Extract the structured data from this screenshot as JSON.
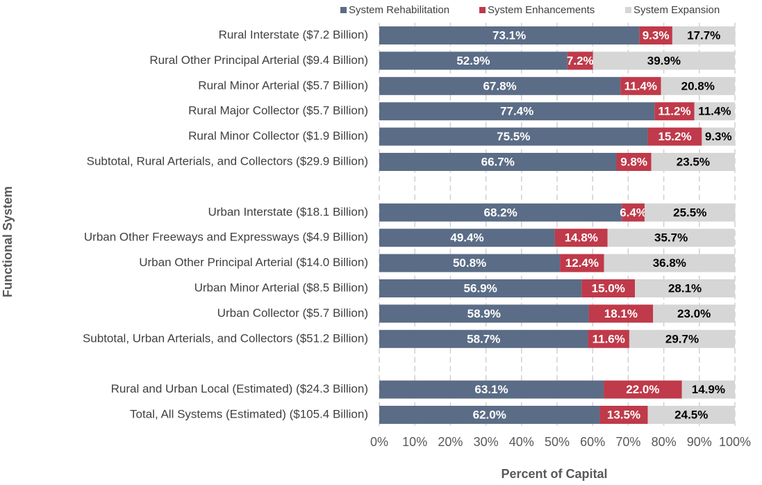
{
  "chart_data": {
    "type": "stacked-bar-horizontal",
    "x_label": "Percent of Capital",
    "y_label": "Functional System",
    "categories": [
      "Rural Interstate ($7.2 Billion)",
      "Rural Other Principal Arterial ($9.4 Billion)",
      "Rural Minor Arterial ($5.7 Billion)",
      "Rural Major Collector ($5.7 Billion)",
      "Rural Minor Collector ($1.9 Billion)",
      "Subtotal, Rural Arterials, and Collectors ($29.9 Billion)",
      null,
      "Urban Interstate ($18.1 Billion)",
      "Urban Other Freeways and Expressways ($4.9 Billion)",
      "Urban Other Principal Arterial ($14.0 Billion)",
      "Urban Minor Arterial ($8.5 Billion)",
      "Urban Collector ($5.7 Billion)",
      "Subtotal, Urban Arterials, and Collectors ($51.2 Billion)",
      null,
      "Rural and Urban Local (Estimated) ($24.3 Billion)",
      "Total, All Systems (Estimated) ($105.4 Billion)"
    ],
    "series": [
      {
        "name": "System Rehabilitation",
        "color": "#5b6c86",
        "values": [
          73.1,
          52.9,
          67.8,
          77.4,
          75.5,
          66.7,
          null,
          68.2,
          49.4,
          50.8,
          56.9,
          58.9,
          58.7,
          null,
          63.1,
          62.0
        ],
        "value_labels": [
          "73.1%",
          "52.9%",
          "67.8%",
          "77.4%",
          "75.5%",
          "66.7%",
          null,
          "68.2%",
          "49.4%",
          "50.8%",
          "56.9%",
          "58.9%",
          "58.7%",
          null,
          "63.1%",
          "62.0%"
        ]
      },
      {
        "name": "System Enhancements",
        "color": "#bf3a4a",
        "values": [
          9.3,
          7.2,
          11.4,
          11.2,
          15.2,
          9.8,
          null,
          6.4,
          14.8,
          12.4,
          15.0,
          18.1,
          11.6,
          null,
          22.0,
          13.5
        ],
        "value_labels": [
          "9.3%",
          "7.2%",
          "11.4%",
          "11.2%",
          "15.2%",
          "9.8%",
          null,
          "6.4%",
          "14.8%",
          "12.4%",
          "15.0%",
          "18.1%",
          "11.6%",
          null,
          "22.0%",
          "13.5%"
        ]
      },
      {
        "name": "System Expansion",
        "color": "#d6d6d6",
        "values": [
          17.7,
          39.9,
          20.8,
          11.4,
          9.3,
          23.5,
          null,
          25.5,
          35.7,
          36.8,
          28.1,
          23.0,
          29.7,
          null,
          14.9,
          24.5
        ],
        "value_labels": [
          "17.7%",
          "39.9%",
          "20.8%",
          "11.4%",
          "9.3%",
          "23.5%",
          null,
          "25.5%",
          "35.7%",
          "36.8%",
          "28.1%",
          "23.0%",
          "29.7%",
          null,
          "14.9%",
          "24.5%"
        ]
      }
    ],
    "xlim": [
      0,
      100
    ],
    "xticks": [
      {
        "value": 0,
        "label": "0%"
      },
      {
        "value": 10,
        "label": "10%"
      },
      {
        "value": 20,
        "label": "20%"
      },
      {
        "value": 30,
        "label": "30%"
      },
      {
        "value": 40,
        "label": "40%"
      },
      {
        "value": 50,
        "label": "50%"
      },
      {
        "value": 60,
        "label": "60%"
      },
      {
        "value": 70,
        "label": "70%"
      },
      {
        "value": 80,
        "label": "80%"
      },
      {
        "value": 90,
        "label": "90%"
      },
      {
        "value": 100,
        "label": "100%"
      }
    ],
    "grid": true,
    "legend": "top"
  }
}
